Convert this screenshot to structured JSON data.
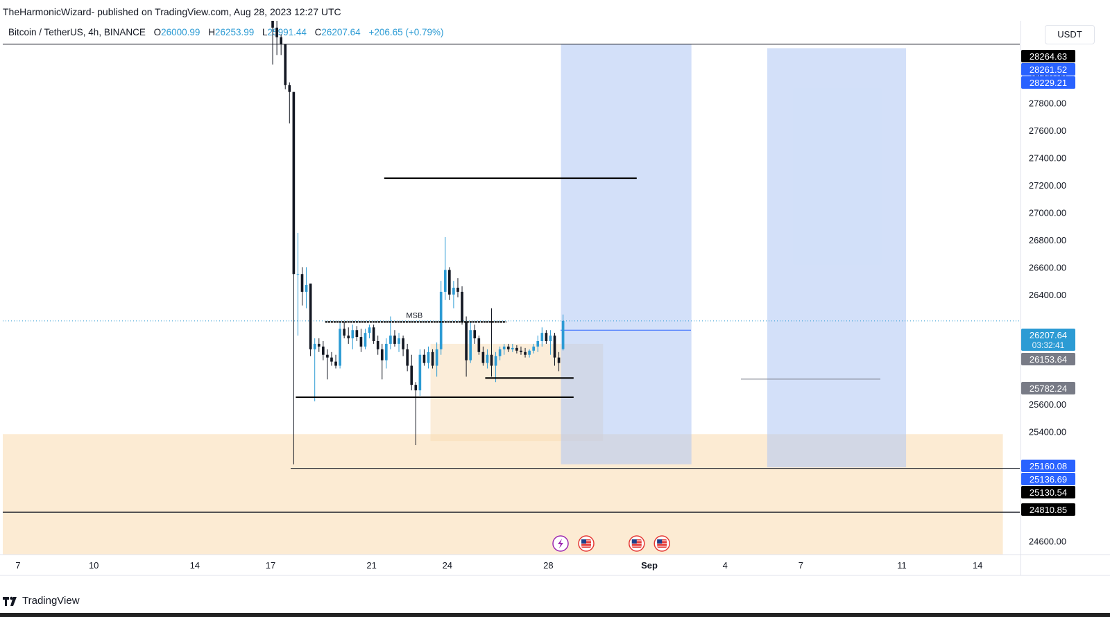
{
  "header": {
    "published": "TheHarmonicWizard- published on TradingView.com, Aug 28, 2023 12:27 UTC"
  },
  "legend": {
    "symbol": "Bitcoin / TetherUS, 4h, BINANCE",
    "open_label": "O",
    "open": "26000.99",
    "high_label": "H",
    "high": "26253.99",
    "low_label": "L",
    "low": "25991.44",
    "close_label": "C",
    "close": "26207.64",
    "change": "+206.65 (+0.79%)"
  },
  "currency": "USDT",
  "footer": {
    "brand": "TradingView"
  },
  "colors": {
    "up": "#2c9bd4",
    "down": "#131722",
    "zone": "#fcebd3",
    "projection": "#c9dafa",
    "price_tag_blue": "#2962ff",
    "price_tag_black": "#000000",
    "price_tag_gray": "#787b86"
  },
  "chart_data": {
    "type": "candlestick",
    "interval": "4h",
    "ylim": [
      24500,
      28400
    ],
    "xlim": [
      "2023-08-06",
      "2023-09-15"
    ],
    "y_ticks": [
      "28000.00",
      "27800.00",
      "27600.00",
      "27400.00",
      "27200.00",
      "27000.00",
      "26800.00",
      "26600.00",
      "26400.00",
      "25600.00",
      "25400.00",
      "24600.00"
    ],
    "x_ticks": [
      {
        "label": "7",
        "date": "2023-08-07"
      },
      {
        "label": "10",
        "date": "2023-08-10"
      },
      {
        "label": "14",
        "date": "2023-08-14"
      },
      {
        "label": "17",
        "date": "2023-08-17"
      },
      {
        "label": "21",
        "date": "2023-08-21"
      },
      {
        "label": "24",
        "date": "2023-08-24"
      },
      {
        "label": "28",
        "date": "2023-08-28"
      },
      {
        "label": "Sep",
        "date": "2023-09-01",
        "bold": true
      },
      {
        "label": "4",
        "date": "2023-09-04"
      },
      {
        "label": "7",
        "date": "2023-09-07"
      },
      {
        "label": "11",
        "date": "2023-09-11"
      },
      {
        "label": "14",
        "date": "2023-09-14"
      }
    ],
    "price_tags": [
      {
        "value": "28264.63",
        "style": "black"
      },
      {
        "value": "28261.52",
        "style": "blue"
      },
      {
        "value": "28229.21",
        "style": "blue"
      },
      {
        "value": "26207.64",
        "sub": "03:32:41",
        "style": "last"
      },
      {
        "value": "26153.64",
        "style": "gray"
      },
      {
        "value": "25782.24",
        "style": "gray"
      },
      {
        "value": "25160.08",
        "style": "blue"
      },
      {
        "value": "25136.69",
        "style": "blue"
      },
      {
        "value": "25130.54",
        "style": "black"
      },
      {
        "value": "24810.85",
        "style": "black"
      }
    ],
    "horizontal_lines": [
      28229,
      25130,
      24810
    ],
    "segments": [
      {
        "from": "2023-08-21T12:00",
        "to": "2023-08-31T12:00",
        "y": 27250
      },
      {
        "from": "2023-08-19T04:00",
        "to": "2023-08-26T08:00",
        "y": 26200,
        "label": "MSB"
      },
      {
        "from": "2023-08-25T12:00",
        "to": "2023-08-29T00:00",
        "y": 25790
      },
      {
        "from": "2023-08-18T00:00",
        "to": "2023-08-29T00:00",
        "y": 25650
      }
    ],
    "zones": [
      {
        "kind": "demand",
        "from": "2023-08-06",
        "to": "2023-09-15",
        "y1": 25380,
        "y2": 24500
      },
      {
        "kind": "box",
        "from": "2023-08-23T08:00",
        "to": "2023-08-30T04:00",
        "y1": 26040,
        "y2": 25330
      },
      {
        "kind": "projection",
        "from": "2023-08-28T12:00",
        "to": "2023-09-02T16:00",
        "y1": 28229,
        "y2": 25160
      },
      {
        "kind": "projection",
        "from": "2023-09-05T16:00",
        "to": "2023-09-11T04:00",
        "y1": 28200,
        "y2": 25137
      }
    ],
    "events": [
      {
        "date": "2023-08-28T12:00",
        "kind": "lightning"
      },
      {
        "date": "2023-08-29T12:00",
        "kind": "us-flag"
      },
      {
        "date": "2023-08-31T12:00",
        "kind": "us-flag"
      },
      {
        "date": "2023-09-01T12:00",
        "kind": "us-flag"
      }
    ],
    "candles": [
      {
        "t": "2023-08-17T00:00",
        "o": 28450,
        "h": 28500,
        "l": 28080,
        "c": 28350
      },
      {
        "t": "2023-08-17T04:00",
        "o": 28350,
        "h": 28420,
        "l": 28150,
        "c": 28280
      },
      {
        "t": "2023-08-17T08:00",
        "o": 28280,
        "h": 28300,
        "l": 28150,
        "c": 28230
      },
      {
        "t": "2023-08-17T12:00",
        "o": 28230,
        "h": 28230,
        "l": 27900,
        "c": 27930
      },
      {
        "t": "2023-08-17T16:00",
        "o": 27930,
        "h": 27950,
        "l": 27650,
        "c": 27880
      },
      {
        "t": "2023-08-17T20:00",
        "o": 27880,
        "h": 27880,
        "l": 25160,
        "c": 26550
      },
      {
        "t": "2023-08-18T00:00",
        "o": 26550,
        "h": 26850,
        "l": 26100,
        "c": 26550
      },
      {
        "t": "2023-08-18T04:00",
        "o": 26550,
        "h": 26600,
        "l": 26320,
        "c": 26420
      },
      {
        "t": "2023-08-18T08:00",
        "o": 26420,
        "h": 26600,
        "l": 26300,
        "c": 26470
      },
      {
        "t": "2023-08-18T12:00",
        "o": 26480,
        "h": 26480,
        "l": 25950,
        "c": 26000
      },
      {
        "t": "2023-08-18T16:00",
        "o": 26000,
        "h": 26080,
        "l": 25620,
        "c": 26040
      },
      {
        "t": "2023-08-18T20:00",
        "o": 26040,
        "h": 26080,
        "l": 25980,
        "c": 26020
      },
      {
        "t": "2023-08-19T00:00",
        "o": 26020,
        "h": 26060,
        "l": 25920,
        "c": 25960
      },
      {
        "t": "2023-08-19T04:00",
        "o": 25960,
        "h": 26000,
        "l": 25780,
        "c": 25940
      },
      {
        "t": "2023-08-19T08:00",
        "o": 25940,
        "h": 25980,
        "l": 25880,
        "c": 25910
      },
      {
        "t": "2023-08-19T12:00",
        "o": 25910,
        "h": 25960,
        "l": 25860,
        "c": 25880
      },
      {
        "t": "2023-08-19T16:00",
        "o": 25880,
        "h": 26200,
        "l": 25860,
        "c": 26150
      },
      {
        "t": "2023-08-19T20:00",
        "o": 26150,
        "h": 26200,
        "l": 26080,
        "c": 26100
      },
      {
        "t": "2023-08-20T00:00",
        "o": 26100,
        "h": 26160,
        "l": 26040,
        "c": 26080
      },
      {
        "t": "2023-08-20T04:00",
        "o": 26080,
        "h": 26180,
        "l": 26000,
        "c": 26140
      },
      {
        "t": "2023-08-20T08:00",
        "o": 26140,
        "h": 26170,
        "l": 26060,
        "c": 26090
      },
      {
        "t": "2023-08-20T12:00",
        "o": 26090,
        "h": 26150,
        "l": 25980,
        "c": 26020
      },
      {
        "t": "2023-08-20T16:00",
        "o": 26020,
        "h": 26150,
        "l": 26000,
        "c": 26120
      },
      {
        "t": "2023-08-20T20:00",
        "o": 26120,
        "h": 26180,
        "l": 26080,
        "c": 26160
      },
      {
        "t": "2023-08-21T00:00",
        "o": 26160,
        "h": 26180,
        "l": 26040,
        "c": 26060
      },
      {
        "t": "2023-08-21T04:00",
        "o": 26060,
        "h": 26100,
        "l": 25960,
        "c": 26000
      },
      {
        "t": "2023-08-21T08:00",
        "o": 26000,
        "h": 26040,
        "l": 25780,
        "c": 25920
      },
      {
        "t": "2023-08-21T12:00",
        "o": 25920,
        "h": 26080,
        "l": 25860,
        "c": 26040
      },
      {
        "t": "2023-08-21T16:00",
        "o": 26040,
        "h": 26240,
        "l": 26000,
        "c": 26100
      },
      {
        "t": "2023-08-21T20:00",
        "o": 26100,
        "h": 26140,
        "l": 26020,
        "c": 26040
      },
      {
        "t": "2023-08-22T00:00",
        "o": 26040,
        "h": 26120,
        "l": 25980,
        "c": 26080
      },
      {
        "t": "2023-08-22T04:00",
        "o": 26080,
        "h": 26100,
        "l": 25950,
        "c": 26000
      },
      {
        "t": "2023-08-22T08:00",
        "o": 26000,
        "h": 26040,
        "l": 25840,
        "c": 25880
      },
      {
        "t": "2023-08-22T12:00",
        "o": 25880,
        "h": 25960,
        "l": 25700,
        "c": 25740
      },
      {
        "t": "2023-08-22T16:00",
        "o": 25740,
        "h": 25760,
        "l": 25300,
        "c": 25700
      },
      {
        "t": "2023-08-22T20:00",
        "o": 25700,
        "h": 26000,
        "l": 25660,
        "c": 25960
      },
      {
        "t": "2023-08-23T00:00",
        "o": 25960,
        "h": 26000,
        "l": 25880,
        "c": 25900
      },
      {
        "t": "2023-08-23T04:00",
        "o": 25900,
        "h": 26020,
        "l": 25860,
        "c": 25980
      },
      {
        "t": "2023-08-23T08:00",
        "o": 25980,
        "h": 26000,
        "l": 25860,
        "c": 25880
      },
      {
        "t": "2023-08-23T12:00",
        "o": 25880,
        "h": 26050,
        "l": 25800,
        "c": 26000
      },
      {
        "t": "2023-08-23T16:00",
        "o": 26000,
        "h": 26500,
        "l": 25960,
        "c": 26420
      },
      {
        "t": "2023-08-23T20:00",
        "o": 26420,
        "h": 26820,
        "l": 26360,
        "c": 26580
      },
      {
        "t": "2023-08-24T00:00",
        "o": 26580,
        "h": 26600,
        "l": 26360,
        "c": 26400
      },
      {
        "t": "2023-08-24T04:00",
        "o": 26400,
        "h": 26500,
        "l": 26300,
        "c": 26450
      },
      {
        "t": "2023-08-24T08:00",
        "o": 26450,
        "h": 26520,
        "l": 26380,
        "c": 26420
      },
      {
        "t": "2023-08-24T12:00",
        "o": 26420,
        "h": 26460,
        "l": 26180,
        "c": 26200
      },
      {
        "t": "2023-08-24T16:00",
        "o": 26200,
        "h": 26240,
        "l": 25800,
        "c": 25920
      },
      {
        "t": "2023-08-24T20:00",
        "o": 25920,
        "h": 26200,
        "l": 25900,
        "c": 26140
      },
      {
        "t": "2023-08-25T00:00",
        "o": 26140,
        "h": 26180,
        "l": 26040,
        "c": 26080
      },
      {
        "t": "2023-08-25T04:00",
        "o": 26080,
        "h": 26100,
        "l": 25960,
        "c": 25980
      },
      {
        "t": "2023-08-25T08:00",
        "o": 25980,
        "h": 26020,
        "l": 25880,
        "c": 25900
      },
      {
        "t": "2023-08-25T12:00",
        "o": 25900,
        "h": 26000,
        "l": 25860,
        "c": 25960
      },
      {
        "t": "2023-08-25T16:00",
        "o": 25960,
        "h": 26300,
        "l": 25800,
        "c": 25880
      },
      {
        "t": "2023-08-25T20:00",
        "o": 25880,
        "h": 25980,
        "l": 25760,
        "c": 25950
      },
      {
        "t": "2023-08-26T00:00",
        "o": 25950,
        "h": 26020,
        "l": 25920,
        "c": 26000
      },
      {
        "t": "2023-08-26T04:00",
        "o": 26000,
        "h": 26040,
        "l": 25960,
        "c": 26020
      },
      {
        "t": "2023-08-26T08:00",
        "o": 26020,
        "h": 26040,
        "l": 25980,
        "c": 26000
      },
      {
        "t": "2023-08-26T12:00",
        "o": 26000,
        "h": 26040,
        "l": 25980,
        "c": 26010
      },
      {
        "t": "2023-08-26T16:00",
        "o": 26010,
        "h": 26030,
        "l": 25970,
        "c": 25990
      },
      {
        "t": "2023-08-26T20:00",
        "o": 25990,
        "h": 26020,
        "l": 25960,
        "c": 25980
      },
      {
        "t": "2023-08-27T00:00",
        "o": 25980,
        "h": 26010,
        "l": 25940,
        "c": 25960
      },
      {
        "t": "2023-08-27T04:00",
        "o": 25960,
        "h": 26000,
        "l": 25940,
        "c": 25990
      },
      {
        "t": "2023-08-27T08:00",
        "o": 25990,
        "h": 26040,
        "l": 25970,
        "c": 26020
      },
      {
        "t": "2023-08-27T12:00",
        "o": 26020,
        "h": 26100,
        "l": 25980,
        "c": 26060
      },
      {
        "t": "2023-08-27T16:00",
        "o": 26060,
        "h": 26160,
        "l": 26020,
        "c": 26120
      },
      {
        "t": "2023-08-27T20:00",
        "o": 26120,
        "h": 26140,
        "l": 26040,
        "c": 26060
      },
      {
        "t": "2023-08-28T00:00",
        "o": 26060,
        "h": 26140,
        "l": 25960,
        "c": 26100
      },
      {
        "t": "2023-08-28T04:00",
        "o": 26100,
        "h": 26120,
        "l": 25880,
        "c": 25940
      },
      {
        "t": "2023-08-28T08:00",
        "o": 25940,
        "h": 25980,
        "l": 25840,
        "c": 25900
      },
      {
        "t": "2023-08-28T12:00",
        "o": 26000.99,
        "h": 26253.99,
        "l": 25991.44,
        "c": 26207.64
      }
    ]
  }
}
